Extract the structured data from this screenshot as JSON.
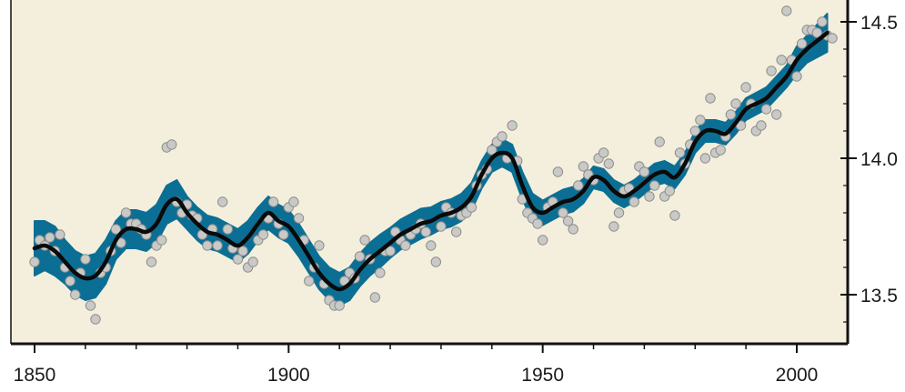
{
  "chart_data": {
    "type": "line",
    "title": "",
    "xlabel": "",
    "ylabel": "",
    "xlim": [
      1845,
      2012
    ],
    "ylim": [
      13.3,
      14.55
    ],
    "x_ticks": [
      1850,
      1900,
      1950,
      2000
    ],
    "x_tick_labels": [
      "1850",
      "1900",
      "1950",
      "2000"
    ],
    "y_ticks": [
      13.5,
      14.0,
      14.5
    ],
    "y_tick_labels": [
      "13.5",
      "14.0",
      "14.5"
    ],
    "y_axis_side": "right",
    "grid": false,
    "legend": "none",
    "colors": {
      "background": "#f3efdc",
      "band": "#0b6f95",
      "line": "#0a0a0a",
      "points_fill": "#c9c9c7",
      "points_stroke": "#8d8d8b",
      "axis": "#111111"
    },
    "series": [
      {
        "kind": "smoothed-line",
        "x": [
          1850,
          1852,
          1854,
          1856,
          1858,
          1860,
          1862,
          1864,
          1866,
          1868,
          1870,
          1872,
          1874,
          1876,
          1878,
          1880,
          1882,
          1884,
          1886,
          1888,
          1890,
          1892,
          1894,
          1896,
          1898,
          1900,
          1902,
          1904,
          1906,
          1908,
          1910,
          1912,
          1914,
          1916,
          1918,
          1920,
          1922,
          1924,
          1926,
          1928,
          1930,
          1932,
          1934,
          1936,
          1938,
          1940,
          1942,
          1944,
          1946,
          1948,
          1950,
          1952,
          1954,
          1956,
          1958,
          1960,
          1962,
          1964,
          1966,
          1968,
          1970,
          1972,
          1974,
          1976,
          1978,
          1980,
          1982,
          1984,
          1986,
          1988,
          1990,
          1992,
          1994,
          1996,
          1998,
          2000,
          2002,
          2004,
          2006
        ],
        "y": [
          13.67,
          13.68,
          13.66,
          13.62,
          13.58,
          13.56,
          13.57,
          13.62,
          13.7,
          13.74,
          13.74,
          13.73,
          13.76,
          13.83,
          13.85,
          13.8,
          13.76,
          13.73,
          13.72,
          13.7,
          13.68,
          13.71,
          13.76,
          13.8,
          13.77,
          13.75,
          13.7,
          13.64,
          13.58,
          13.54,
          13.52,
          13.54,
          13.59,
          13.63,
          13.66,
          13.69,
          13.72,
          13.74,
          13.76,
          13.77,
          13.79,
          13.8,
          13.82,
          13.86,
          13.94,
          14.0,
          14.02,
          14.0,
          13.9,
          13.82,
          13.8,
          13.82,
          13.84,
          13.85,
          13.88,
          13.93,
          13.92,
          13.88,
          13.86,
          13.88,
          13.91,
          13.94,
          13.95,
          13.93,
          13.98,
          14.06,
          14.1,
          14.1,
          14.09,
          14.13,
          14.18,
          14.2,
          14.22,
          14.26,
          14.3,
          14.36,
          14.4,
          14.43,
          14.46
        ]
      },
      {
        "kind": "uncertainty-band",
        "x": [
          1850,
          1852,
          1854,
          1856,
          1858,
          1860,
          1862,
          1864,
          1866,
          1868,
          1870,
          1872,
          1874,
          1876,
          1878,
          1880,
          1882,
          1884,
          1886,
          1888,
          1890,
          1892,
          1894,
          1896,
          1898,
          1900,
          1902,
          1904,
          1906,
          1908,
          1910,
          1912,
          1914,
          1916,
          1918,
          1920,
          1922,
          1924,
          1926,
          1928,
          1930,
          1932,
          1934,
          1936,
          1938,
          1940,
          1942,
          1944,
          1946,
          1948,
          1950,
          1952,
          1954,
          1956,
          1958,
          1960,
          1962,
          1964,
          1966,
          1968,
          1970,
          1972,
          1974,
          1976,
          1978,
          1980,
          1982,
          1984,
          1986,
          1988,
          1990,
          1992,
          1994,
          1996,
          1998,
          2000,
          2002,
          2004,
          2006
        ],
        "half_width": [
          0.1,
          0.09,
          0.09,
          0.08,
          0.08,
          0.08,
          0.08,
          0.08,
          0.07,
          0.07,
          0.07,
          0.07,
          0.07,
          0.07,
          0.07,
          0.06,
          0.06,
          0.06,
          0.06,
          0.06,
          0.06,
          0.06,
          0.06,
          0.06,
          0.06,
          0.06,
          0.06,
          0.06,
          0.06,
          0.06,
          0.06,
          0.06,
          0.06,
          0.06,
          0.06,
          0.055,
          0.055,
          0.055,
          0.055,
          0.05,
          0.05,
          0.05,
          0.05,
          0.05,
          0.05,
          0.05,
          0.05,
          0.05,
          0.05,
          0.05,
          0.045,
          0.045,
          0.045,
          0.045,
          0.045,
          0.04,
          0.04,
          0.04,
          0.04,
          0.04,
          0.04,
          0.04,
          0.04,
          0.04,
          0.04,
          0.04,
          0.04,
          0.04,
          0.04,
          0.04,
          0.04,
          0.04,
          0.04,
          0.04,
          0.04,
          0.05,
          0.05,
          0.06,
          0.07
        ]
      },
      {
        "kind": "annual-points",
        "points": [
          [
            1850,
            13.62
          ],
          [
            1851,
            13.7
          ],
          [
            1852,
            13.68
          ],
          [
            1853,
            13.71
          ],
          [
            1854,
            13.66
          ],
          [
            1855,
            13.72
          ],
          [
            1856,
            13.6
          ],
          [
            1857,
            13.55
          ],
          [
            1858,
            13.5
          ],
          [
            1859,
            13.58
          ],
          [
            1860,
            13.63
          ],
          [
            1861,
            13.46
          ],
          [
            1862,
            13.41
          ],
          [
            1863,
            13.58
          ],
          [
            1864,
            13.6
          ],
          [
            1865,
            13.66
          ],
          [
            1866,
            13.74
          ],
          [
            1867,
            13.69
          ],
          [
            1868,
            13.8
          ],
          [
            1869,
            13.76
          ],
          [
            1870,
            13.76
          ],
          [
            1871,
            13.74
          ],
          [
            1872,
            13.72
          ],
          [
            1873,
            13.62
          ],
          [
            1874,
            13.68
          ],
          [
            1875,
            13.7
          ],
          [
            1876,
            14.04
          ],
          [
            1877,
            14.05
          ],
          [
            1878,
            13.84
          ],
          [
            1879,
            13.8
          ],
          [
            1880,
            13.83
          ],
          [
            1881,
            13.79
          ],
          [
            1882,
            13.78
          ],
          [
            1883,
            13.72
          ],
          [
            1884,
            13.68
          ],
          [
            1885,
            13.74
          ],
          [
            1886,
            13.68
          ],
          [
            1887,
            13.84
          ],
          [
            1888,
            13.74
          ],
          [
            1889,
            13.67
          ],
          [
            1890,
            13.63
          ],
          [
            1891,
            13.66
          ],
          [
            1892,
            13.6
          ],
          [
            1893,
            13.62
          ],
          [
            1894,
            13.7
          ],
          [
            1895,
            13.72
          ],
          [
            1896,
            13.78
          ],
          [
            1897,
            13.84
          ],
          [
            1898,
            13.76
          ],
          [
            1899,
            13.72
          ],
          [
            1900,
            13.82
          ],
          [
            1901,
            13.84
          ],
          [
            1902,
            13.78
          ],
          [
            1903,
            13.7
          ],
          [
            1904,
            13.55
          ],
          [
            1905,
            13.6
          ],
          [
            1906,
            13.68
          ],
          [
            1907,
            13.54
          ],
          [
            1908,
            13.48
          ],
          [
            1909,
            13.46
          ],
          [
            1910,
            13.46
          ],
          [
            1911,
            13.55
          ],
          [
            1912,
            13.58
          ],
          [
            1913,
            13.56
          ],
          [
            1914,
            13.64
          ],
          [
            1915,
            13.7
          ],
          [
            1916,
            13.63
          ],
          [
            1917,
            13.49
          ],
          [
            1918,
            13.58
          ],
          [
            1919,
            13.66
          ],
          [
            1920,
            13.66
          ],
          [
            1921,
            13.73
          ],
          [
            1922,
            13.7
          ],
          [
            1923,
            13.68
          ],
          [
            1924,
            13.72
          ],
          [
            1925,
            13.74
          ],
          [
            1926,
            13.76
          ],
          [
            1927,
            13.73
          ],
          [
            1928,
            13.68
          ],
          [
            1929,
            13.62
          ],
          [
            1930,
            13.75
          ],
          [
            1931,
            13.82
          ],
          [
            1932,
            13.8
          ],
          [
            1933,
            13.73
          ],
          [
            1934,
            13.79
          ],
          [
            1935,
            13.8
          ],
          [
            1936,
            13.82
          ],
          [
            1937,
            13.9
          ],
          [
            1938,
            13.94
          ],
          [
            1939,
            13.96
          ],
          [
            1940,
            14.03
          ],
          [
            1941,
            14.06
          ],
          [
            1942,
            14.08
          ],
          [
            1943,
            14.0
          ],
          [
            1944,
            14.12
          ],
          [
            1945,
            13.99
          ],
          [
            1946,
            13.85
          ],
          [
            1947,
            13.8
          ],
          [
            1948,
            13.78
          ],
          [
            1949,
            13.76
          ],
          [
            1950,
            13.7
          ],
          [
            1951,
            13.82
          ],
          [
            1952,
            13.84
          ],
          [
            1953,
            13.95
          ],
          [
            1954,
            13.8
          ],
          [
            1955,
            13.77
          ],
          [
            1956,
            13.74
          ],
          [
            1957,
            13.9
          ],
          [
            1958,
            13.97
          ],
          [
            1959,
            13.94
          ],
          [
            1960,
            13.92
          ],
          [
            1961,
            14.0
          ],
          [
            1962,
            14.02
          ],
          [
            1963,
            13.98
          ],
          [
            1964,
            13.75
          ],
          [
            1965,
            13.8
          ],
          [
            1966,
            13.88
          ],
          [
            1967,
            13.89
          ],
          [
            1968,
            13.84
          ],
          [
            1969,
            13.97
          ],
          [
            1970,
            13.95
          ],
          [
            1971,
            13.86
          ],
          [
            1972,
            13.9
          ],
          [
            1973,
            14.06
          ],
          [
            1974,
            13.86
          ],
          [
            1975,
            13.88
          ],
          [
            1976,
            13.79
          ],
          [
            1977,
            14.02
          ],
          [
            1978,
            13.98
          ],
          [
            1979,
            14.05
          ],
          [
            1980,
            14.1
          ],
          [
            1981,
            14.14
          ],
          [
            1982,
            14.0
          ],
          [
            1983,
            14.22
          ],
          [
            1984,
            14.02
          ],
          [
            1985,
            14.03
          ],
          [
            1986,
            14.08
          ],
          [
            1987,
            14.16
          ],
          [
            1988,
            14.2
          ],
          [
            1989,
            14.12
          ],
          [
            1990,
            14.26
          ],
          [
            1991,
            14.2
          ],
          [
            1992,
            14.1
          ],
          [
            1993,
            14.12
          ],
          [
            1994,
            14.18
          ],
          [
            1995,
            14.32
          ],
          [
            1996,
            14.16
          ],
          [
            1997,
            14.36
          ],
          [
            1998,
            14.54
          ],
          [
            1999,
            14.36
          ],
          [
            2000,
            14.3
          ],
          [
            2001,
            14.42
          ],
          [
            2002,
            14.47
          ],
          [
            2003,
            14.47
          ],
          [
            2004,
            14.46
          ],
          [
            2005,
            14.5
          ],
          [
            2006,
            14.45
          ],
          [
            2007,
            14.44
          ]
        ]
      }
    ]
  }
}
